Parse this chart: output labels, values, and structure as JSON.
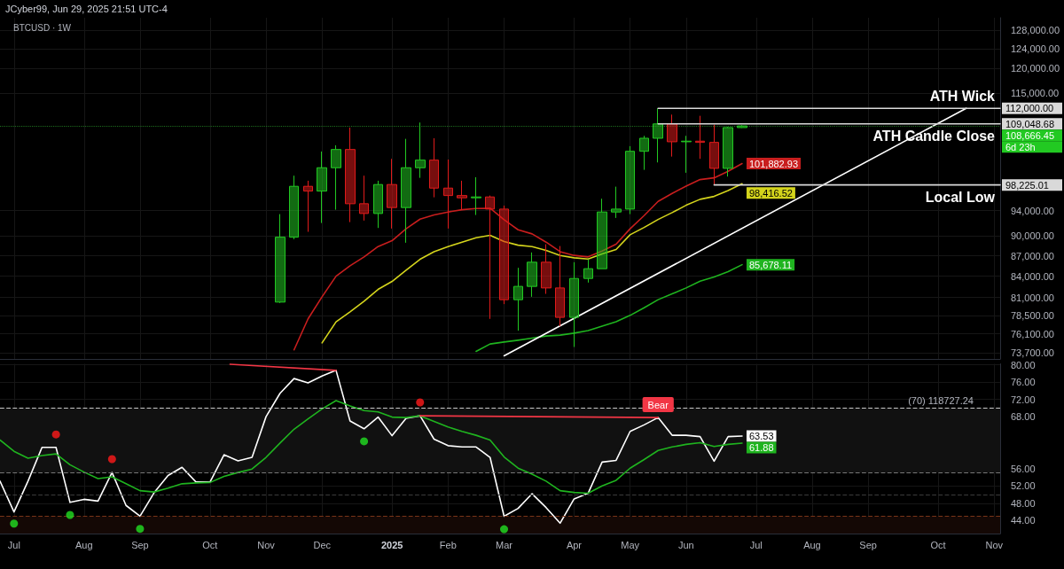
{
  "chart_data": [
    {
      "type": "candlestick",
      "title": "BTCUSD · 1W",
      "x": [
        "2024-11-11",
        "2024-11-18",
        "2024-11-25",
        "2024-12-02",
        "2024-12-09",
        "2024-12-16",
        "2024-12-23",
        "2024-12-30",
        "2025-01-06",
        "2025-01-13",
        "2025-01-20",
        "2025-01-27",
        "2025-02-03",
        "2025-02-10",
        "2025-02-17",
        "2025-02-24",
        "2025-03-03",
        "2025-03-10",
        "2025-03-17",
        "2025-03-24",
        "2025-03-31",
        "2025-04-07",
        "2025-04-14",
        "2025-04-21",
        "2025-04-28",
        "2025-05-05",
        "2025-05-12",
        "2025-05-19",
        "2025-05-26",
        "2025-06-02",
        "2025-06-09",
        "2025-06-16",
        "2025-06-23",
        "2025-06-30"
      ],
      "ohlc": [
        [
          80360,
          93430,
          80240,
          89810
        ],
        [
          89810,
          99790,
          89500,
          97990
        ],
        [
          97990,
          98930,
          90640,
          97190
        ],
        [
          97190,
          104010,
          92020,
          101160
        ],
        [
          101160,
          105120,
          94140,
          104370
        ],
        [
          104370,
          108360,
          92160,
          95110
        ],
        [
          95110,
          99790,
          92400,
          93530
        ],
        [
          93530,
          98930,
          91240,
          98290
        ],
        [
          98290,
          102710,
          91150,
          94490
        ],
        [
          94490,
          106290,
          88960,
          101160
        ],
        [
          101160,
          109300,
          99420,
          102490
        ],
        [
          102490,
          106400,
          96160,
          97690
        ],
        [
          97690,
          102590,
          91150,
          96450
        ],
        [
          96450,
          98930,
          94140,
          96080
        ],
        [
          96080,
          99530,
          93290,
          96220
        ],
        [
          96220,
          96450,
          78080,
          94240
        ],
        [
          94240,
          94810,
          80080,
          80690
        ],
        [
          80690,
          85220,
          76520,
          82550
        ],
        [
          82550,
          87490,
          81090,
          86040
        ],
        [
          86040,
          88730,
          81500,
          82330
        ],
        [
          82330,
          88460,
          77100,
          78280
        ],
        [
          78280,
          86040,
          74410,
          83680
        ],
        [
          83680,
          86470,
          83090,
          85090
        ],
        [
          85090,
          95930,
          85090,
          93770
        ],
        [
          93770,
          97930,
          92820,
          94240
        ],
        [
          94240,
          104970,
          93430,
          104050
        ],
        [
          104050,
          106840,
          100790,
          106400
        ],
        [
          106400,
          112000,
          102080,
          109048.68
        ],
        [
          109048.68,
          110800,
          103110,
          105760
        ],
        [
          105760,
          106840,
          100290,
          105870
        ],
        [
          105870,
          110570,
          102710,
          105650
        ],
        [
          105650,
          108900,
          98225.01,
          101050
        ],
        [
          101050,
          108500,
          99640,
          108360
        ],
        [
          108360,
          108800,
          108300,
          108666.45
        ]
      ],
      "value_labels": [
        null,
        null,
        null,
        null,
        null,
        null,
        null,
        null,
        null,
        null,
        null,
        null,
        null,
        null,
        null,
        null,
        null,
        null,
        null,
        null,
        null,
        null,
        null,
        null,
        null,
        null,
        null,
        null,
        null,
        null,
        null,
        null,
        null,
        "108,666.45"
      ],
      "colors": [
        "#22c922",
        "#22c922",
        "#e01b1b",
        "#22c922",
        "#22c922",
        "#e01b1b",
        "#e01b1b",
        "#22c922",
        "#e01b1b",
        "#22c922",
        "#22c922",
        "#e01b1b",
        "#e01b1b",
        "#e01b1b",
        "#22c922",
        "#e01b1b",
        "#e01b1b",
        "#22c922",
        "#22c922",
        "#e01b1b",
        "#e01b1b",
        "#22c922",
        "#22c922",
        "#22c922",
        "#22c922",
        "#22c922",
        "#22c922",
        "#22c922",
        "#e01b1b",
        "#22c922",
        "#e01b1b",
        "#e01b1b",
        "#22c922",
        "#22c922"
      ],
      "series": [
        {
          "type": "line",
          "color": "#c81e1e",
          "x": [
            "2024-11-18",
            "2024-11-25",
            "2024-12-02",
            "2024-12-09",
            "2024-12-16",
            "2024-12-23",
            "2024-12-30",
            "2025-01-06",
            "2025-01-13",
            "2025-01-20",
            "2025-01-27",
            "2025-02-03",
            "2025-02-10",
            "2025-02-17",
            "2025-02-24",
            "2025-03-03",
            "2025-03-10",
            "2025-03-17",
            "2025-03-24",
            "2025-03-31",
            "2025-04-07",
            "2025-04-14",
            "2025-04-21",
            "2025-04-28",
            "2025-05-05",
            "2025-05-12",
            "2025-05-19",
            "2025-05-26",
            "2025-06-02",
            "2025-06-09",
            "2025-06-16",
            "2025-06-23",
            "2025-06-30"
          ],
          "values": [
            74040,
            78080,
            81090,
            84010,
            85510,
            86830,
            88380,
            89270,
            91110,
            92630,
            93290,
            93770,
            94140,
            94340,
            94380,
            92540,
            90960,
            90320,
            89050,
            87610,
            87050,
            86830,
            87710,
            88730,
            91110,
            93200,
            95490,
            96810,
            98030,
            99130,
            99420,
            100550,
            101882.93
          ],
          "value_labels": [
            null,
            null,
            null,
            null,
            null,
            null,
            null,
            null,
            null,
            null,
            null,
            null,
            null,
            null,
            null,
            null,
            null,
            null,
            null,
            null,
            null,
            null,
            null,
            null,
            null,
            null,
            null,
            null,
            null,
            null,
            null,
            null,
            "101,882.93"
          ]
        },
        {
          "type": "line",
          "color": "#d4d41c",
          "x": [
            "2024-12-02",
            "2024-12-09",
            "2024-12-16",
            "2024-12-23",
            "2024-12-30",
            "2025-01-06",
            "2025-01-13",
            "2025-01-20",
            "2025-01-27",
            "2025-02-03",
            "2025-02-10",
            "2025-02-17",
            "2025-02-24",
            "2025-03-03",
            "2025-03-10",
            "2025-03-17",
            "2025-03-24",
            "2025-03-31",
            "2025-04-07",
            "2025-04-14",
            "2025-04-21",
            "2025-04-28",
            "2025-05-05",
            "2025-05-12",
            "2025-05-19",
            "2025-05-26",
            "2025-06-02",
            "2025-06-09",
            "2025-06-16",
            "2025-06-23",
            "2025-06-30"
          ],
          "values": [
            74940,
            77690,
            79030,
            80480,
            82120,
            83250,
            84870,
            86470,
            87610,
            88380,
            89050,
            89730,
            90090,
            89140,
            88590,
            88380,
            87790,
            87050,
            86690,
            86520,
            87260,
            87930,
            90180,
            91320,
            92580,
            93670,
            94860,
            95830,
            96310,
            97290,
            98416.52
          ],
          "value_labels": [
            null,
            null,
            null,
            null,
            null,
            null,
            null,
            null,
            null,
            null,
            null,
            null,
            null,
            null,
            null,
            null,
            null,
            null,
            null,
            null,
            null,
            null,
            null,
            null,
            null,
            null,
            null,
            null,
            null,
            null,
            "98,416.52"
          ]
        },
        {
          "type": "line",
          "color": "#1fb41f",
          "x": [
            "2025-02-17",
            "2025-02-24",
            "2025-03-03",
            "2025-03-10",
            "2025-03-17",
            "2025-03-24",
            "2025-03-31",
            "2025-04-07",
            "2025-04-14",
            "2025-04-21",
            "2025-04-28",
            "2025-05-05",
            "2025-05-12",
            "2025-05-19",
            "2025-05-26",
            "2025-06-02",
            "2025-06-09",
            "2025-06-16",
            "2025-06-23",
            "2025-06-30"
          ],
          "values": [
            73850,
            74790,
            75050,
            75280,
            75540,
            75820,
            75940,
            76200,
            76520,
            77100,
            77690,
            78550,
            79590,
            80690,
            81500,
            82330,
            83300,
            83890,
            84650,
            85678.11
          ],
          "value_labels": [
            null,
            null,
            null,
            null,
            null,
            null,
            null,
            null,
            null,
            null,
            null,
            null,
            null,
            null,
            null,
            null,
            null,
            null,
            null,
            "85,678.11"
          ]
        },
        {
          "type": "line",
          "color": "#ffffff",
          "x": [
            "2025-03-03",
            "2025-10-20"
          ],
          "values": [
            73290,
            112000
          ]
        },
        {
          "type": "line",
          "name": "ATH Wick",
          "color": "#d9d9d9",
          "x": [
            "2025-05-19",
            "2025-11-06"
          ],
          "values": [
            112000,
            112000
          ],
          "value_labels": [
            null,
            "112,000.00"
          ]
        },
        {
          "type": "line",
          "name": "ATH Candle Close",
          "color": "#d9d9d9",
          "x": [
            "2025-05-19",
            "2025-11-06"
          ],
          "values": [
            109048.68,
            109048.68
          ],
          "value_labels": [
            null,
            "109,048.68"
          ]
        },
        {
          "type": "line",
          "name": "Local Low",
          "color": "#d9d9d9",
          "x": [
            "2025-06-16",
            "2025-11-06"
          ],
          "values": [
            98225.01,
            98225.01
          ],
          "value_labels": [
            null,
            "98,225.01"
          ]
        }
      ],
      "log": true,
      "xlim": [
        "2024-06-24",
        "2025-11-06"
      ],
      "xticks": [
        {
          "value": "2024-07-01",
          "label": null
        },
        {
          "value": "2024-08-05",
          "label": null
        },
        {
          "value": "2024-09-02",
          "label": null
        },
        {
          "value": "2024-10-07",
          "label": null
        },
        {
          "value": "2024-11-04",
          "label": null
        },
        {
          "value": "2024-12-02",
          "label": null
        },
        {
          "value": "2025-01-06",
          "label": null
        },
        {
          "value": "2025-02-03",
          "label": null
        },
        {
          "value": "2025-03-03",
          "label": null
        },
        {
          "value": "2025-04-07",
          "label": null
        },
        {
          "value": "2025-05-05",
          "label": null
        },
        {
          "value": "2025-06-02",
          "label": null
        },
        {
          "value": "2025-07-07",
          "label": null
        },
        {
          "value": "2025-08-04",
          "label": null
        },
        {
          "value": "2025-09-01",
          "label": null
        },
        {
          "value": "2025-10-06",
          "label": null
        },
        {
          "value": "2025-11-03",
          "label": null
        }
      ],
      "ylim": [
        72900,
        130800
      ],
      "yticks": [
        {
          "value": 73700,
          "label": "73,700.00"
        },
        {
          "value": 76100,
          "label": "76,100.00"
        },
        {
          "value": 78500,
          "label": "78,500.00"
        },
        {
          "value": 81000,
          "label": "81,000.00"
        },
        {
          "value": 84000,
          "label": "84,000.00"
        },
        {
          "value": 87000,
          "label": "87,000.00"
        },
        {
          "value": 90000,
          "label": "90,000.00"
        },
        {
          "value": 94000,
          "label": "94,000.00"
        },
        {
          "value": 115000,
          "label": "115,000.00"
        },
        {
          "value": 120000,
          "label": "120,000.00"
        },
        {
          "value": 124000,
          "label": "124,000.00"
        },
        {
          "value": 128000,
          "label": "128,000.00"
        }
      ],
      "grid": true,
      "tick_labels": "y",
      "ref_lines": [
        {
          "axis": "y",
          "value": 108666.45,
          "color": "#1e6e1e",
          "line_style": "dotted"
        }
      ],
      "annotations": [
        "JCyber99, Jun 29, 2025 21:51 UTC-4",
        "6d 23h"
      ]
    },
    {
      "type": "line",
      "x": [
        "2024-06-24",
        "2024-07-01",
        "2024-07-08",
        "2024-07-15",
        "2024-07-22",
        "2024-07-29",
        "2024-08-05",
        "2024-08-12",
        "2024-08-19",
        "2024-08-26",
        "2024-09-02",
        "2024-09-09",
        "2024-09-16",
        "2024-09-23",
        "2024-09-30",
        "2024-10-07",
        "2024-10-14",
        "2024-10-21",
        "2024-10-28",
        "2024-11-04",
        "2024-11-11",
        "2024-11-18",
        "2024-11-25",
        "2024-12-02",
        "2024-12-09",
        "2024-12-16",
        "2024-12-23",
        "2024-12-30",
        "2025-01-06",
        "2025-01-13",
        "2025-01-20",
        "2025-01-27",
        "2025-02-03",
        "2025-02-10",
        "2025-02-17",
        "2025-02-24",
        "2025-03-03",
        "2025-03-10",
        "2025-03-17",
        "2025-03-24",
        "2025-03-31",
        "2025-04-07",
        "2025-04-14",
        "2025-04-21",
        "2025-04-28",
        "2025-05-05",
        "2025-05-12",
        "2025-05-19",
        "2025-05-26",
        "2025-06-02",
        "2025-06-09",
        "2025-06-16",
        "2025-06-23",
        "2025-06-30"
      ],
      "series": [
        {
          "color": "#ffffff",
          "values": [
            53.1,
            46.0,
            53.1,
            60.9,
            60.9,
            48.2,
            48.9,
            48.5,
            55.1,
            47.5,
            45.0,
            50.4,
            54.4,
            56.3,
            52.9,
            52.9,
            59.2,
            57.8,
            58.6,
            68.0,
            73.4,
            76.8,
            75.8,
            77.4,
            78.7,
            67.0,
            65.2,
            67.9,
            63.6,
            67.6,
            68.2,
            62.8,
            61.3,
            61.0,
            61.0,
            58.6,
            45.0,
            46.8,
            50.2,
            47.0,
            43.4,
            49.0,
            50.3,
            57.5,
            57.9,
            64.6,
            66.1,
            67.8,
            63.7,
            63.7,
            63.4,
            57.7,
            63.4,
            63.53
          ],
          "value_labels": [
            null,
            null,
            null,
            null,
            null,
            null,
            null,
            null,
            null,
            null,
            null,
            null,
            null,
            null,
            null,
            null,
            null,
            null,
            null,
            null,
            null,
            null,
            null,
            null,
            null,
            null,
            null,
            null,
            null,
            null,
            null,
            null,
            null,
            null,
            null,
            null,
            null,
            null,
            null,
            null,
            null,
            null,
            null,
            null,
            null,
            null,
            null,
            null,
            null,
            null,
            null,
            null,
            null,
            "63.53"
          ]
        },
        {
          "values": [
            62.6,
            60.0,
            58.4,
            59.0,
            59.4,
            56.9,
            55.2,
            53.7,
            54.1,
            52.5,
            50.9,
            50.6,
            51.5,
            52.5,
            52.7,
            52.8,
            54.2,
            55.1,
            55.9,
            58.6,
            61.9,
            65.1,
            67.5,
            69.8,
            71.7,
            70.5,
            69.4,
            69.1,
            67.9,
            67.8,
            68.2,
            66.9,
            65.6,
            64.6,
            63.7,
            62.6,
            58.7,
            56.1,
            54.7,
            53.1,
            50.9,
            50.5,
            50.3,
            52.0,
            53.3,
            56.1,
            58.1,
            60.2,
            61.0,
            61.6,
            62.0,
            61.1,
            61.6,
            61.88
          ],
          "value_labels": [
            null,
            null,
            null,
            null,
            null,
            null,
            null,
            null,
            null,
            null,
            null,
            null,
            null,
            null,
            null,
            null,
            null,
            null,
            null,
            null,
            null,
            null,
            null,
            null,
            null,
            null,
            null,
            null,
            null,
            null,
            null,
            null,
            null,
            null,
            null,
            null,
            null,
            null,
            null,
            null,
            null,
            null,
            null,
            null,
            null,
            null,
            null,
            null,
            null,
            null,
            null,
            null,
            null,
            "61.88"
          ],
          "colors": [
            "#c81e1e",
            "#c81e1e",
            "#1fb41f",
            "#1fb41f",
            "#c81e1e",
            "#c81e1e",
            "#c81e1e",
            "#1fb41f",
            "#c81e1e",
            "#c81e1e",
            "#c81e1e",
            "#1fb41f",
            "#1fb41f",
            "#1fb41f",
            "#1fb41f",
            "#1fb41f",
            "#1fb41f",
            "#1fb41f",
            "#1fb41f",
            "#1fb41f",
            "#1fb41f",
            "#1fb41f",
            "#1fb41f",
            "#1fb41f",
            "#c81e1e",
            "#c81e1e",
            "#c81e1e",
            "#c81e1e",
            "#c81e1e",
            "#1fb41f",
            "#c81e1e",
            "#c81e1e",
            "#c81e1e",
            "#c81e1e",
            "#c81e1e",
            "#c81e1e",
            "#c81e1e",
            "#c81e1e",
            "#c81e1e",
            "#c81e1e",
            "#c81e1e",
            "#c81e1e",
            "#1fb41f",
            "#1fb41f",
            "#1fb41f",
            "#1fb41f",
            "#1fb41f",
            "#1fb41f",
            "#1fb41f",
            "#1fb41f",
            "#c81e1e",
            "#1fb41f",
            "#1fb41f",
            "#1fb41f"
          ]
        },
        {
          "type": "line",
          "color": "#f23645",
          "x": [
            "2024-10-17",
            "2024-12-09"
          ],
          "values": [
            80.1,
            78.7
          ]
        },
        {
          "type": "line",
          "color": "#f23645",
          "x": [
            "2025-01-20",
            "2025-05-19"
          ],
          "values": [
            68.2,
            67.8
          ]
        },
        {
          "type": "scatter",
          "color": "#22e022",
          "x": [
            "2024-07-01",
            "2024-07-29",
            "2024-09-02",
            "2024-12-23",
            "2025-03-03"
          ],
          "values": [
            43.3,
            45.3,
            42.1,
            62.3,
            42.0
          ]
        },
        {
          "type": "scatter",
          "color": "#ff1a1a",
          "x": [
            "2024-07-22",
            "2024-08-19",
            "2025-01-20"
          ],
          "values": [
            63.9,
            58.2,
            71.3
          ]
        }
      ],
      "xlim": [
        "2024-06-24",
        "2025-11-06"
      ],
      "xticks": [
        {
          "value": "2024-07-01",
          "label": "Jul"
        },
        {
          "value": "2024-08-05",
          "label": "Aug"
        },
        {
          "value": "2024-09-02",
          "label": "Sep"
        },
        {
          "value": "2024-10-07",
          "label": "Oct"
        },
        {
          "value": "2024-11-04",
          "label": "Nov"
        },
        {
          "value": "2024-12-02",
          "label": "Dec"
        },
        {
          "value": "2025-01-06",
          "label": "2025"
        },
        {
          "value": "2025-02-03",
          "label": "Feb"
        },
        {
          "value": "2025-03-03",
          "label": "Mar"
        },
        {
          "value": "2025-04-07",
          "label": "Apr"
        },
        {
          "value": "2025-05-05",
          "label": "May"
        },
        {
          "value": "2025-06-02",
          "label": "Jun"
        },
        {
          "value": "2025-07-07",
          "label": "Jul"
        },
        {
          "value": "2025-08-04",
          "label": "Aug"
        },
        {
          "value": "2025-09-01",
          "label": "Sep"
        },
        {
          "value": "2025-10-06",
          "label": "Oct"
        },
        {
          "value": "2025-11-03",
          "label": "Nov"
        }
      ],
      "ylim": [
        41,
        80.2
      ],
      "yticks": [
        {
          "value": 44,
          "label": "44.00"
        },
        {
          "value": 48,
          "label": "48.00"
        },
        {
          "value": 52,
          "label": "52.00"
        },
        {
          "value": 56,
          "label": "56.00"
        },
        {
          "value": 68,
          "label": "68.00"
        },
        {
          "value": 72,
          "label": "72.00"
        },
        {
          "value": 76,
          "label": "76.00"
        },
        {
          "value": 80,
          "label": "80.00"
        }
      ],
      "grid": true,
      "ref_lines": [
        {
          "axis": "y",
          "value": 70,
          "label": "(70) 118727.24",
          "color": "#c8c8c8",
          "line_style": "dashed"
        },
        {
          "axis": "y",
          "value": 55,
          "color": "#777777",
          "line_style": "dashed"
        },
        {
          "axis": "y",
          "value": 50,
          "color": "#3c3c3c",
          "line_style": "dashed"
        },
        {
          "axis": "y",
          "value": 45,
          "color": "#7a3418",
          "line_style": "dashed"
        }
      ],
      "bands": [
        {
          "axis": "y",
          "from": 55,
          "to": 70,
          "color": "#111111"
        },
        {
          "axis": "y",
          "from": 41,
          "to": 45,
          "color": "#140805"
        }
      ],
      "annotations": [
        {
          "text": "Bear",
          "x": "2025-05-19",
          "y": 67.8
        }
      ]
    }
  ]
}
